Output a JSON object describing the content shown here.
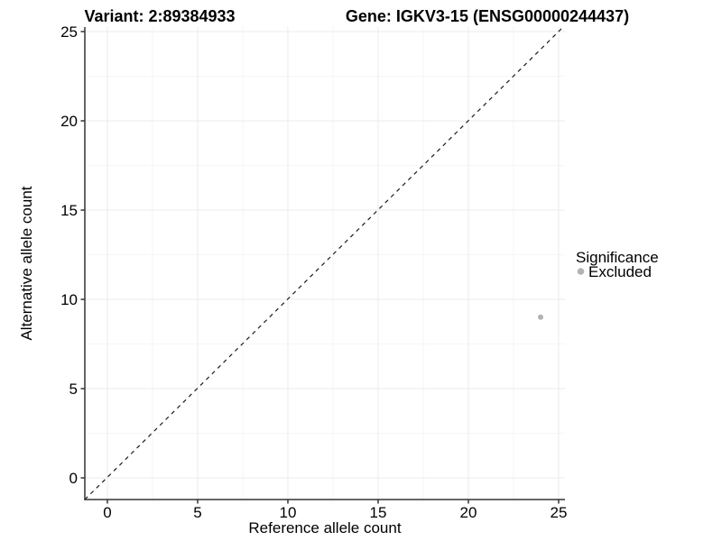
{
  "chart_data": {
    "type": "scatter",
    "title_left": "Variant: 2:89384933",
    "title_right": "Gene: IGKV3-15 (ENSG00000244437)",
    "xlabel": "Reference allele count",
    "ylabel": "Alternative allele count",
    "xlim": [
      0,
      25
    ],
    "ylim": [
      0,
      25
    ],
    "x_tick_labels": [
      "0",
      "5",
      "10",
      "15",
      "20",
      "25"
    ],
    "y_tick_labels": [
      "0",
      "5",
      "10",
      "15",
      "20",
      "25"
    ],
    "grid": "on",
    "reference_line": {
      "style": "dashed",
      "equation": "y = x",
      "color": "#1a1a1a"
    },
    "legend": {
      "title": "Significance",
      "position": "right",
      "entries": [
        {
          "label": "Excluded",
          "color": "#b3b3b3",
          "marker": "circle"
        }
      ]
    },
    "series": [
      {
        "name": "Excluded",
        "color": "#b3b3b3",
        "points": [
          {
            "x": 24,
            "y": 9
          }
        ]
      }
    ]
  },
  "colors": {
    "background": "#ffffff",
    "axis_line": "#333333",
    "grid_major": "#ebebeb",
    "grid_minor": "#f6f6f6",
    "point_gray": "#b3b3b3",
    "text": "#000000"
  }
}
